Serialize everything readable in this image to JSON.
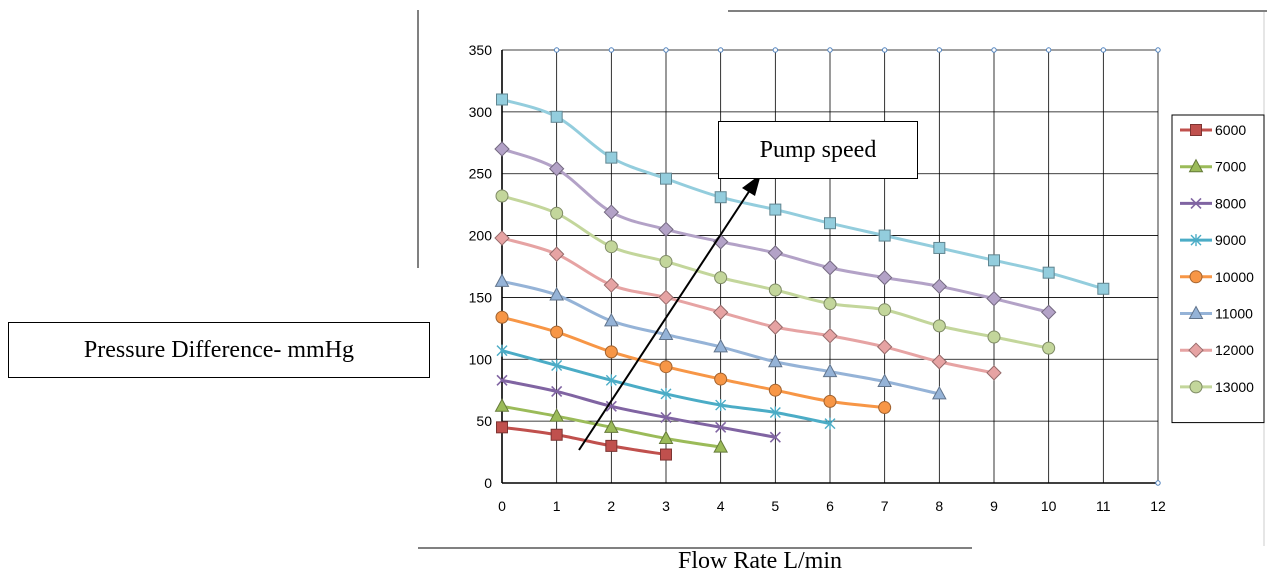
{
  "chart_data": {
    "type": "line",
    "xlabel": "Flow Rate L/min",
    "ylabel": "Pressure Difference- mmHg",
    "annotation": "Pump speed",
    "xlim": [
      0,
      12
    ],
    "ylim": [
      0,
      350
    ],
    "x_ticks": [
      0,
      1,
      2,
      3,
      4,
      5,
      6,
      7,
      8,
      9,
      10,
      11,
      12
    ],
    "y_ticks": [
      0,
      50,
      100,
      150,
      200,
      250,
      300,
      350
    ],
    "grid": true,
    "legend_position": "right",
    "series": [
      {
        "name": "6000",
        "color": "#c0504d",
        "marker": "square",
        "x": [
          0,
          1,
          2,
          3
        ],
        "y": [
          45,
          39,
          30,
          23
        ]
      },
      {
        "name": "7000",
        "color": "#9bbb59",
        "marker": "triangle",
        "x": [
          0,
          1,
          2,
          3,
          4
        ],
        "y": [
          62,
          54,
          45,
          36,
          29
        ]
      },
      {
        "name": "8000",
        "color": "#8064a2",
        "marker": "x",
        "x": [
          0,
          1,
          2,
          3,
          4,
          5
        ],
        "y": [
          83,
          74,
          62,
          53,
          45,
          37
        ]
      },
      {
        "name": "9000",
        "color": "#4bacc6",
        "marker": "star",
        "x": [
          0,
          1,
          2,
          3,
          4,
          5,
          6
        ],
        "y": [
          107,
          95,
          83,
          72,
          63,
          57,
          48
        ]
      },
      {
        "name": "10000",
        "color": "#f79646",
        "marker": "circle",
        "x": [
          0,
          1,
          2,
          3,
          4,
          5,
          6,
          7
        ],
        "y": [
          134,
          122,
          106,
          94,
          84,
          75,
          66,
          61
        ]
      },
      {
        "name": "11000",
        "color": "#95b3d7",
        "marker": "triangle",
        "x": [
          0,
          1,
          2,
          3,
          4,
          5,
          6,
          7,
          8
        ],
        "y": [
          163,
          152,
          131,
          120,
          110,
          98,
          90,
          82,
          72
        ]
      },
      {
        "name": "12000",
        "color": "#e6a3a3",
        "marker": "diamond",
        "x": [
          0,
          1,
          2,
          3,
          4,
          5,
          6,
          7,
          8,
          9
        ],
        "y": [
          198,
          185,
          160,
          150,
          138,
          126,
          119,
          110,
          98,
          89
        ]
      },
      {
        "name": "13000",
        "color": "#c3d69b",
        "marker": "circle",
        "x": [
          0,
          1,
          2,
          3,
          4,
          5,
          6,
          7,
          8,
          9,
          10
        ],
        "y": [
          232,
          218,
          191,
          179,
          166,
          156,
          145,
          140,
          127,
          118,
          109
        ]
      },
      {
        "name": "",
        "color": "#b3a2c7",
        "marker": "diamond",
        "x": [
          0,
          1,
          2,
          3,
          4,
          5,
          6,
          7,
          8,
          9,
          10
        ],
        "y": [
          270,
          254,
          219,
          205,
          195,
          186,
          174,
          166,
          159,
          149,
          138
        ]
      },
      {
        "name": "",
        "color": "#93cddd",
        "marker": "square",
        "x": [
          0,
          1,
          2,
          3,
          4,
          5,
          6,
          7,
          8,
          9,
          10,
          11
        ],
        "y": [
          310,
          296,
          263,
          246,
          231,
          221,
          210,
          200,
          190,
          180,
          170,
          157
        ]
      }
    ]
  }
}
